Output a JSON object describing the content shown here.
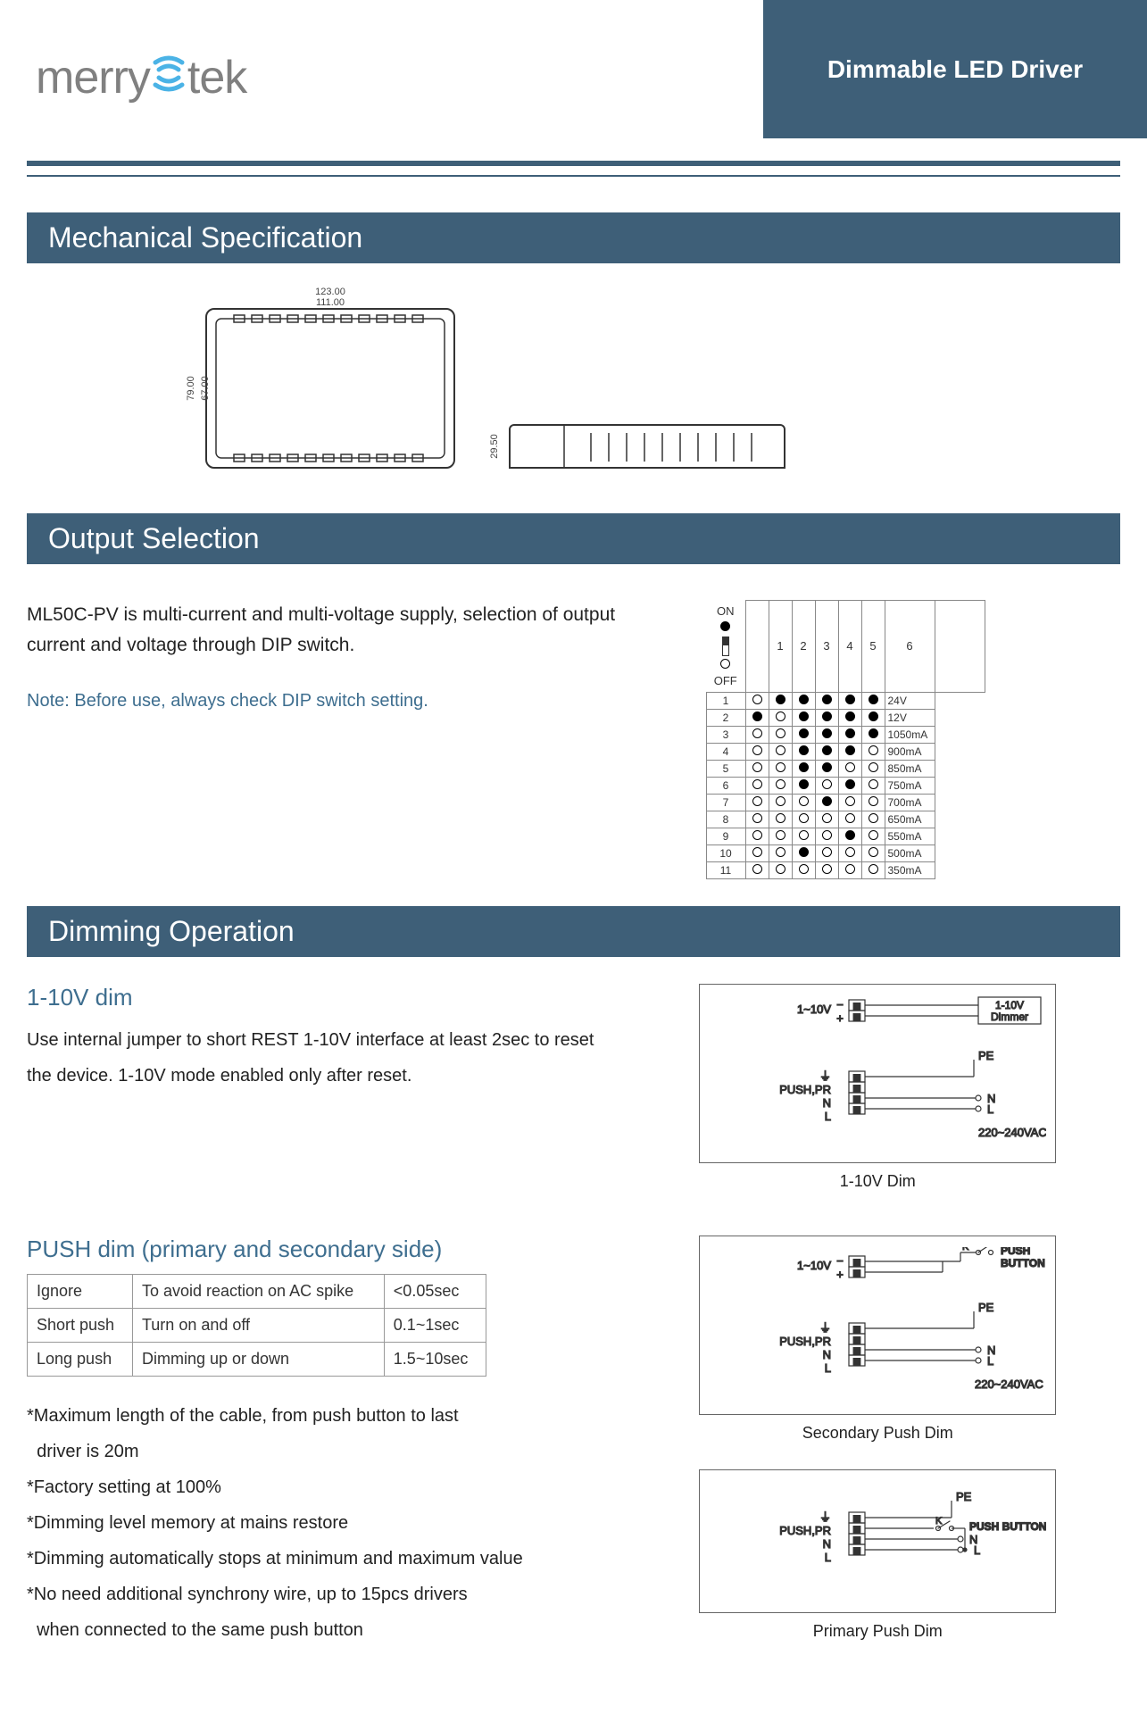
{
  "header": {
    "brand": "merrytek",
    "banner": "Dimmable LED Driver"
  },
  "colors": {
    "brand_blue": "#3e5f78",
    "accent_blue": "#3e6e8f",
    "text": "#222222",
    "gray": "#808080"
  },
  "sections": {
    "mech": {
      "title": "Mechanical Specification"
    },
    "output": {
      "title": "Output Selection"
    },
    "dimming": {
      "title": "Dimming Operation"
    }
  },
  "mech": {
    "top": {
      "w_outer": "123.00",
      "w_inner": "111.00",
      "h_inner": "67.00",
      "h_outer": "79.00"
    },
    "side": {
      "h": "29.50"
    }
  },
  "output": {
    "text": "ML50C-PV is multi-current and multi-voltage supply, selection of output current and voltage through DIP switch.",
    "note": "Note: Before use, always check DIP switch setting.",
    "legend_on": "ON",
    "legend_off": "OFF",
    "headers": [
      "1",
      "2",
      "3",
      "4",
      "5",
      "6"
    ],
    "rows": [
      {
        "n": "1",
        "d": [
          0,
          1,
          1,
          1,
          1,
          1
        ],
        "v": "24V"
      },
      {
        "n": "2",
        "d": [
          1,
          0,
          1,
          1,
          1,
          1
        ],
        "v": "12V"
      },
      {
        "n": "3",
        "d": [
          0,
          0,
          1,
          1,
          1,
          1
        ],
        "v": "1050mA"
      },
      {
        "n": "4",
        "d": [
          0,
          0,
          1,
          1,
          1,
          0
        ],
        "v": "900mA"
      },
      {
        "n": "5",
        "d": [
          0,
          0,
          1,
          1,
          0,
          0
        ],
        "v": "850mA"
      },
      {
        "n": "6",
        "d": [
          0,
          0,
          1,
          0,
          1,
          0
        ],
        "v": "750mA"
      },
      {
        "n": "7",
        "d": [
          0,
          0,
          0,
          1,
          0,
          0
        ],
        "v": "700mA"
      },
      {
        "n": "8",
        "d": [
          0,
          0,
          0,
          0,
          0,
          0
        ],
        "v": "650mA"
      },
      {
        "n": "9",
        "d": [
          0,
          0,
          0,
          0,
          1,
          0
        ],
        "v": "550mA"
      },
      {
        "n": "10",
        "d": [
          0,
          0,
          1,
          0,
          0,
          0
        ],
        "v": "500mA"
      },
      {
        "n": "11",
        "d": [
          0,
          0,
          0,
          0,
          0,
          0
        ],
        "v": "350mA"
      }
    ]
  },
  "dim1": {
    "heading": "1-10V dim",
    "text": "Use internal jumper to short REST 1-10V interface at least 2sec to reset the device. 1-10V mode enabled only after reset.",
    "caption": "1-10V Dim",
    "labels": {
      "v": "1~10V",
      "minus": "−",
      "plus": "+",
      "pe": "PE",
      "push": "PUSH,PR",
      "n": "N",
      "l": "L",
      "vac": "220~240VAC",
      "dimmer": "1-10V\nDimmer"
    }
  },
  "push": {
    "heading": "PUSH dim (primary and secondary side)",
    "table": [
      [
        "Ignore",
        "To avoid reaction on AC spike",
        "<0.05sec"
      ],
      [
        "Short push",
        "Turn on and off",
        "0.1~1sec"
      ],
      [
        "Long push",
        "Dimming up or down",
        "1.5~10sec"
      ]
    ],
    "notes": [
      "*Maximum length of the cable, from push button to last driver is 20m",
      "*Factory setting at 100%",
      "*Dimming level memory at mains restore",
      "*Dimming automatically stops at minimum and maximum value",
      "*No need additional synchrony wire, up to 15pcs drivers when connected to the same push button"
    ],
    "caption_sec": "Secondary Push Dim",
    "caption_pri": "Primary Push Dim",
    "labels": {
      "push_btn": "PUSH\nBUTTON",
      "push_btn_h": "PUSH BUTTON",
      "k": "K"
    }
  }
}
